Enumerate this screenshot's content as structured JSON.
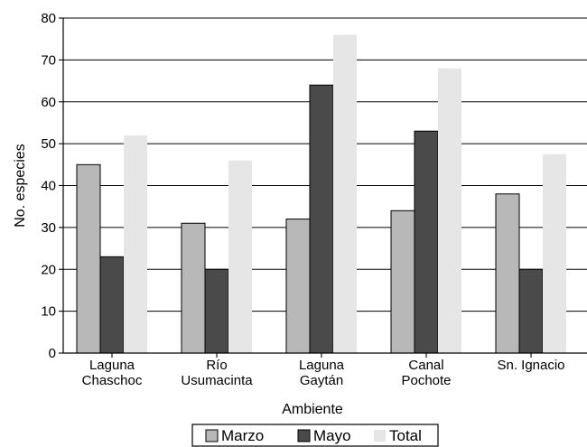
{
  "chart_data": {
    "type": "bar",
    "xlabel": "Ambiente",
    "ylabel": "No. especies",
    "ylim": [
      0,
      80
    ],
    "yticks": [
      0,
      10,
      20,
      30,
      40,
      50,
      60,
      70,
      80
    ],
    "grid": "horizontal",
    "legend_position": "bottom",
    "categories": [
      [
        "Laguna",
        "Chaschoc"
      ],
      [
        "Río",
        "Usumacinta"
      ],
      [
        "Laguna",
        "Gaytán"
      ],
      [
        "Canal",
        "Pochote"
      ],
      [
        "Sn. Ignacio"
      ]
    ],
    "series": [
      {
        "name": "Marzo",
        "color": "#b8b8b8",
        "values": [
          45,
          31,
          32,
          34,
          38
        ]
      },
      {
        "name": "Mayo",
        "color": "#4a4a4a",
        "values": [
          23,
          20,
          64,
          53,
          20
        ]
      },
      {
        "name": "Total",
        "color": "#e6e6e6",
        "values": [
          52,
          46,
          76,
          68,
          47.5
        ]
      }
    ]
  }
}
